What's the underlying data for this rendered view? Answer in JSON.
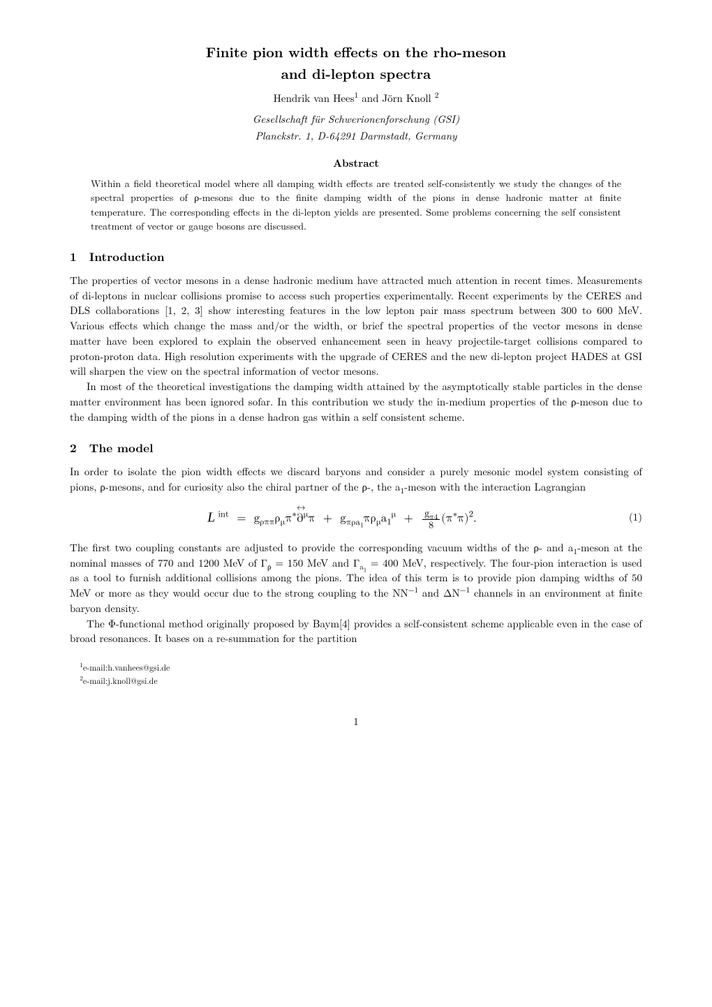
{
  "title_line1": "Finite pion width effects on the rho-meson",
  "title_line2": "and di-lepton spectra",
  "authors_html": "Hendrik van Hees<sup>1</sup> and Jörn Knoll <sup>2</sup>",
  "affil_line1": "Gesellschaft für Schwerionenforschung (GSI)",
  "affil_line2": "Planckstr. 1, D-64291 Darmstadt, Germany",
  "abstract_head": "Abstract",
  "abstract": "Within a field theoretical model where all damping width effects are treated self-consistently we study the changes of the spectral properties of ρ-mesons due to the finite damping width of the pions in dense hadronic matter at finite temperature. The corresponding effects in the di-lepton yields are presented. Some problems concerning the self consistent treatment of vector or gauge bosons are discussed.",
  "sec1_num": "1",
  "sec1_title": "Introduction",
  "sec1_p1": "The properties of vector mesons in a dense hadronic medium have attracted much attention in recent times. Measurements of di-leptons in nuclear collisions promise to access such properties experimentally. Recent experiments by the CERES and DLS collaborations [1, 2, 3] show interesting features in the low lepton pair mass spectrum between 300 to 600 MeV. Various effects which change the mass and/or the width, or brief the spectral properties of the vector mesons in dense matter have been explored to explain the observed enhancement seen in heavy projectile-target collisions compared to proton-proton data. High resolution experiments with the upgrade of CERES and the new di-lepton project HADES at GSI will sharpen the view on the spectral information of vector mesons.",
  "sec1_p2": "In most of the theoretical investigations the damping width attained by the asymptotically stable particles in the dense matter environment has been ignored sofar. In this contribution we study the in-medium properties of the ρ-meson due to the damping width of the pions in a dense hadron gas within a self consistent scheme.",
  "sec2_num": "2",
  "sec2_title": "The model",
  "sec2_p1_html": "In order to isolate the pion width effects we discard baryons and consider a purely mesonic model system consisting of pions, ρ-mesons, and for curiosity also the chiral partner of the ρ-, the a<sub>1</sub>-meson with the interaction Lagrangian",
  "eq1_num": "(1)",
  "sec2_p2_html": "The first two coupling constants are adjusted to provide the corresponding vacuum widths of the ρ- and a<sub>1</sub>-meson at the nominal masses of 770 and 1200 MeV of Γ<sub>ρ</sub> = 150 MeV and Γ<sub>a<sub>1</sub></sub> = 400 MeV, respectively. The four-pion interaction is used as a tool to furnish additional collisions among the pions. The idea of this term is to provide pion damping widths of 50 MeV or more as they would occur due to the strong coupling to the NN<sup>−1</sup> and ΔN<sup>−1</sup> channels in an environment at finite baryon density.",
  "sec2_p3": "The Φ-functional method originally proposed by Baym[4] provides a self-consistent scheme applicable even in the case of broad resonances. It bases on a re-summation for the partition",
  "footnote1_html": "<sup>1</sup>e-mail:h.vanhees@gsi.de",
  "footnote2_html": "<sup>2</sup>e-mail:j.knoll@gsi.de",
  "pagenum": "1"
}
